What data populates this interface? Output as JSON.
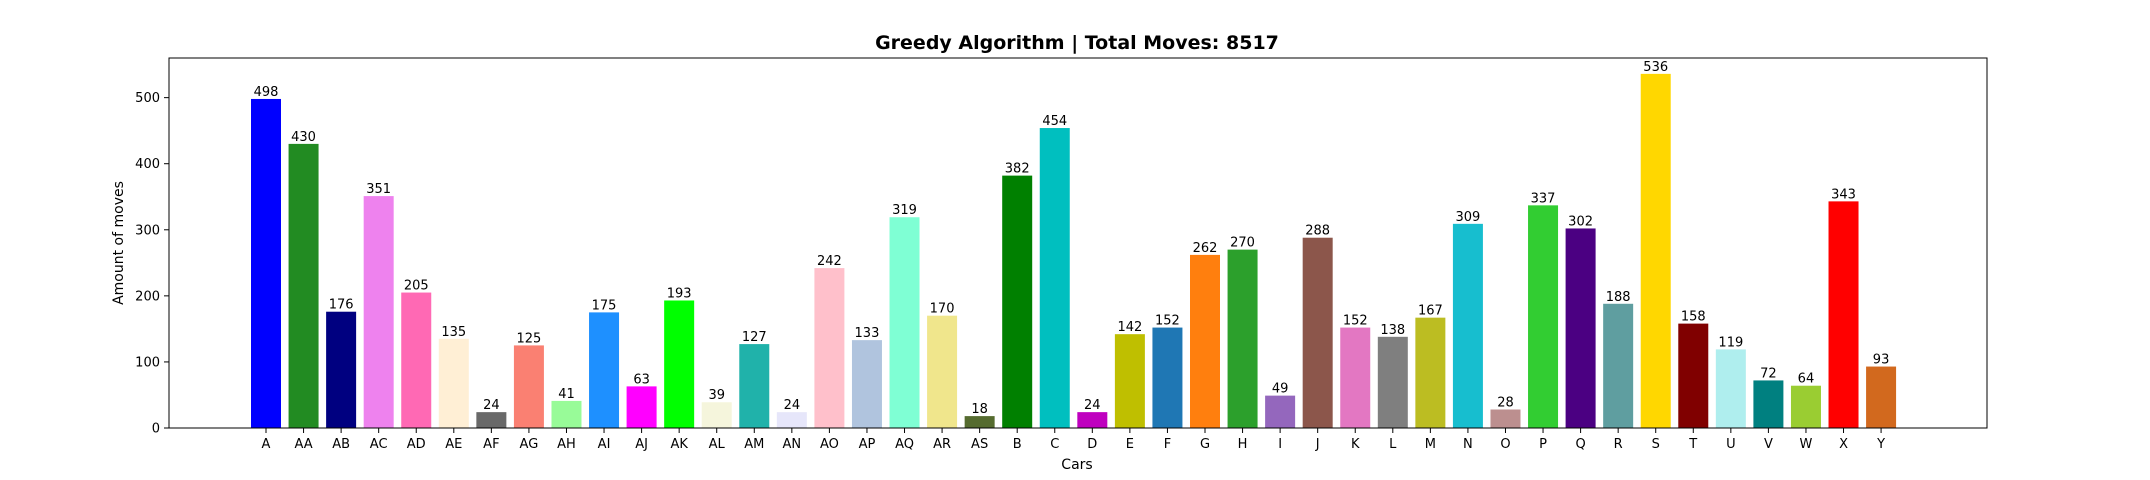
{
  "chart_data": {
    "type": "bar",
    "title": "Greedy Algorithm | Total Moves: 8517",
    "xlabel": "Cars",
    "ylabel": "Amount of moves",
    "ylim": [
      0,
      560
    ],
    "yticks": [
      0,
      100,
      200,
      300,
      400,
      500
    ],
    "grid": false,
    "categories": [
      "A",
      "AA",
      "AB",
      "AC",
      "AD",
      "AE",
      "AF",
      "AG",
      "AH",
      "AI",
      "AJ",
      "AK",
      "AL",
      "AM",
      "AN",
      "AO",
      "AP",
      "AQ",
      "AR",
      "AS",
      "B",
      "C",
      "D",
      "E",
      "F",
      "G",
      "H",
      "I",
      "J",
      "K",
      "L",
      "M",
      "N",
      "O",
      "P",
      "Q",
      "R",
      "S",
      "T",
      "U",
      "V",
      "W",
      "X",
      "Y"
    ],
    "values": [
      498,
      430,
      176,
      351,
      205,
      135,
      24,
      125,
      41,
      175,
      63,
      193,
      39,
      127,
      24,
      242,
      133,
      319,
      170,
      18,
      382,
      454,
      24,
      142,
      152,
      262,
      270,
      49,
      288,
      152,
      138,
      167,
      309,
      28,
      337,
      302,
      188,
      536,
      158,
      119,
      72,
      64,
      343,
      93
    ],
    "colors": [
      "#0000ff",
      "#228b22",
      "#000080",
      "#ee82ee",
      "#ff69b4",
      "#ffefd5",
      "#696969",
      "#fa8072",
      "#98fb98",
      "#1e90ff",
      "#ff00ff",
      "#00ff00",
      "#f5f5dc",
      "#20b2aa",
      "#e6e6fa",
      "#ffc0cb",
      "#b0c4de",
      "#7fffd4",
      "#f0e68c",
      "#556b2f",
      "#008000",
      "#00bfbf",
      "#bf00bf",
      "#bfbf00",
      "#1f77b4",
      "#ff7f0e",
      "#2ca02c",
      "#9467bd",
      "#8c564b",
      "#e377c2",
      "#7f7f7f",
      "#bcbd22",
      "#17becf",
      "#bc8f8f",
      "#32cd32",
      "#4b0082",
      "#5f9ea0",
      "#ffd700",
      "#800000",
      "#afeeee",
      "#008080",
      "#9acd32",
      "#ff0000",
      "#d2691e"
    ]
  }
}
